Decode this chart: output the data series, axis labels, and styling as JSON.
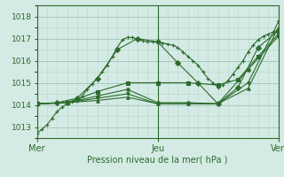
{
  "xlabel": "Pression niveau de la mer( hPa )",
  "bg_color": "#d4eae4",
  "grid_color_major": "#a0c4b8",
  "grid_color_minor": "#b8d8d0",
  "line_color": "#2d6b2d",
  "ylim": [
    1012.5,
    1018.3
  ],
  "xlim": [
    0,
    48
  ],
  "yticks": [
    1013,
    1014,
    1015,
    1016,
    1017,
    1018
  ],
  "xtick_labels": [
    "Mer",
    "Jeu",
    "Ven"
  ],
  "xtick_positions": [
    0,
    24,
    48
  ],
  "series": [
    {
      "x": [
        0,
        1,
        2,
        3,
        4,
        5,
        6,
        7,
        8,
        9,
        10,
        11,
        12,
        13,
        14,
        15,
        16,
        17,
        18,
        19,
        20,
        21,
        22,
        23,
        24,
        25,
        26,
        27,
        28,
        29,
        30,
        31,
        32,
        33,
        34,
        35,
        36,
        37,
        38,
        39,
        40,
        41,
        42,
        43,
        44,
        45,
        46,
        47,
        48
      ],
      "y": [
        1012.7,
        1012.9,
        1013.1,
        1013.4,
        1013.7,
        1013.9,
        1014.05,
        1014.15,
        1014.2,
        1014.4,
        1014.7,
        1014.95,
        1015.2,
        1015.5,
        1015.8,
        1016.2,
        1016.6,
        1016.95,
        1017.05,
        1017.05,
        1016.95,
        1016.9,
        1016.85,
        1016.85,
        1016.85,
        1016.8,
        1016.75,
        1016.7,
        1016.6,
        1016.4,
        1016.2,
        1016.0,
        1015.8,
        1015.5,
        1015.2,
        1015.0,
        1014.8,
        1014.9,
        1015.1,
        1015.4,
        1015.7,
        1016.0,
        1016.4,
        1016.7,
        1016.95,
        1017.1,
        1017.2,
        1017.3,
        1017.4
      ],
      "marker": "+",
      "ms": 3,
      "lw": 0.8
    },
    {
      "x": [
        0,
        4,
        8,
        12,
        16,
        20,
        24,
        28,
        32,
        36,
        40,
        44,
        48
      ],
      "y": [
        1014.05,
        1014.1,
        1014.3,
        1015.2,
        1016.5,
        1017.0,
        1016.85,
        1015.9,
        1015.0,
        1014.05,
        1014.8,
        1016.6,
        1017.35
      ],
      "marker": "D",
      "ms": 3,
      "lw": 0.8
    },
    {
      "x": [
        0,
        6,
        12,
        18,
        24,
        30,
        36,
        40,
        44,
        48
      ],
      "y": [
        1014.05,
        1014.1,
        1014.6,
        1015.0,
        1015.0,
        1015.0,
        1014.9,
        1015.15,
        1016.2,
        1017.2
      ],
      "marker": "s",
      "ms": 3,
      "lw": 0.8
    },
    {
      "x": [
        0,
        6,
        12,
        18,
        24,
        30,
        36,
        42,
        48
      ],
      "y": [
        1014.05,
        1014.1,
        1014.4,
        1014.7,
        1014.1,
        1014.1,
        1014.05,
        1015.6,
        1017.1
      ],
      "marker": "o",
      "ms": 2.5,
      "lw": 0.8
    },
    {
      "x": [
        0,
        6,
        12,
        18,
        24,
        30,
        36,
        42,
        48
      ],
      "y": [
        1014.05,
        1014.1,
        1014.3,
        1014.5,
        1014.05,
        1014.05,
        1014.05,
        1015.0,
        1017.75
      ],
      "marker": "v",
      "ms": 2.5,
      "lw": 0.8
    },
    {
      "x": [
        0,
        6,
        12,
        18,
        24,
        30,
        36,
        42,
        48
      ],
      "y": [
        1014.05,
        1014.1,
        1014.2,
        1014.35,
        1014.05,
        1014.05,
        1014.05,
        1014.75,
        1017.5
      ],
      "marker": "^",
      "ms": 2.5,
      "lw": 0.8
    }
  ]
}
